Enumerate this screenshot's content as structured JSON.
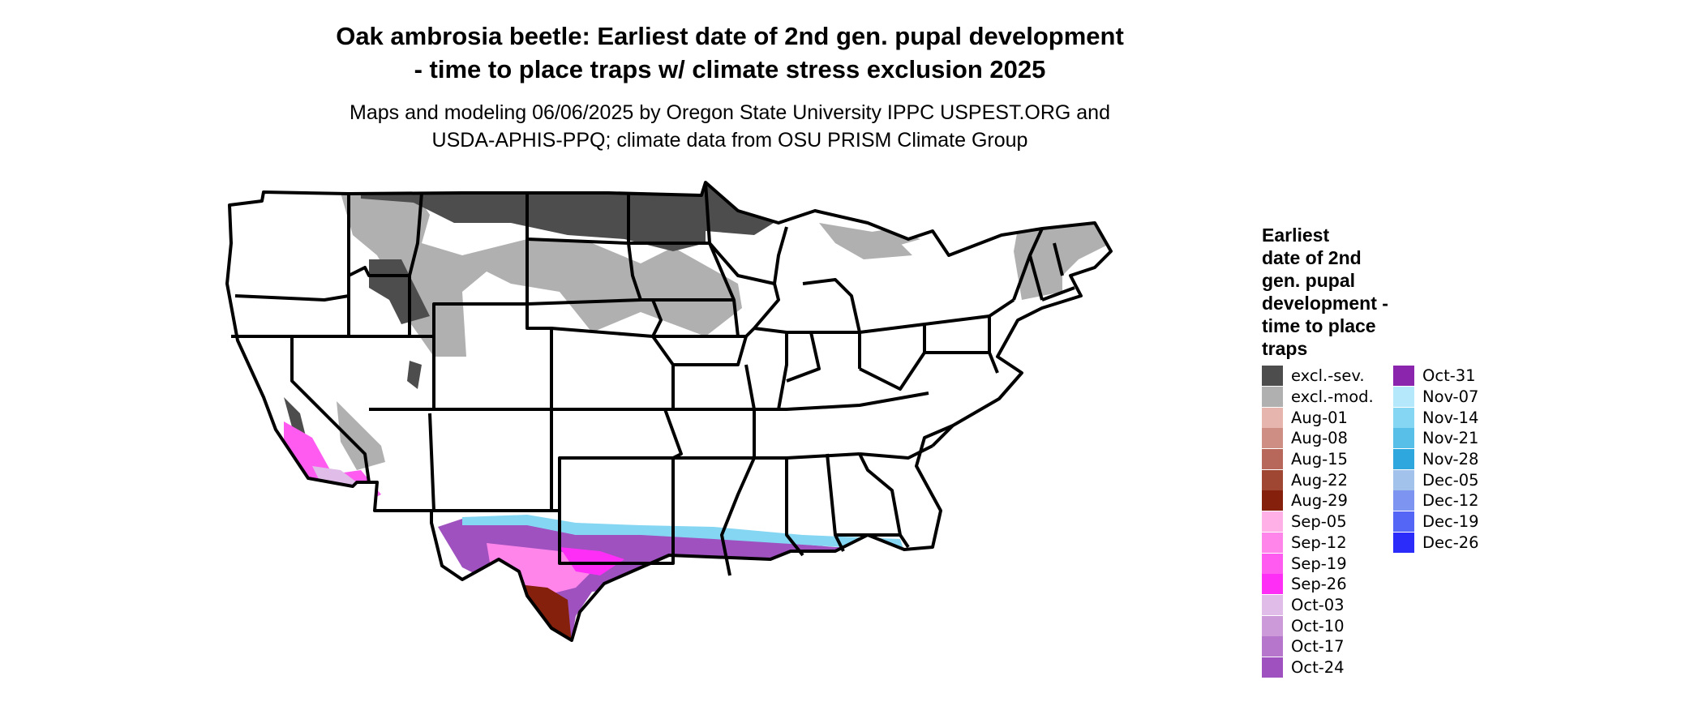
{
  "title": {
    "line1": "Oak ambrosia beetle: Earliest date of 2nd gen. pupal development",
    "line2": "- time to place traps w/ climate stress exclusion 2025"
  },
  "subtitle": {
    "line1": "Maps and modeling 06/06/2025 by Oregon State University IPPC USPEST.ORG and",
    "line2": "USDA-APHIS-PPQ; climate data from OSU PRISM Climate Group"
  },
  "legend": {
    "title_lines": [
      "Earliest",
      "date of 2nd",
      "gen. pupal",
      "development -",
      "time to place",
      "traps"
    ],
    "items": [
      {
        "label": "excl.-sev.",
        "color": "#4d4d4d"
      },
      {
        "label": "excl.-mod.",
        "color": "#b0b0b0"
      },
      {
        "label": "Aug-01",
        "color": "#e6b5ad"
      },
      {
        "label": "Aug-08",
        "color": "#cf8e84"
      },
      {
        "label": "Aug-15",
        "color": "#b8675b"
      },
      {
        "label": "Aug-22",
        "color": "#a04734"
      },
      {
        "label": "Aug-29",
        "color": "#85200d"
      },
      {
        "label": "Sep-05",
        "color": "#ffb0e6"
      },
      {
        "label": "Sep-12",
        "color": "#ff85eb"
      },
      {
        "label": "Sep-19",
        "color": "#ff5bf0"
      },
      {
        "label": "Sep-26",
        "color": "#ff2ef7"
      },
      {
        "label": "Oct-03",
        "color": "#e0bde8"
      },
      {
        "label": "Oct-10",
        "color": "#cc9ad9"
      },
      {
        "label": "Oct-17",
        "color": "#b576cc"
      },
      {
        "label": "Oct-24",
        "color": "#9e51bf"
      },
      {
        "label": "Oct-31",
        "color": "#8c25ad"
      },
      {
        "label": "Nov-07",
        "color": "#b5e8fa"
      },
      {
        "label": "Nov-14",
        "color": "#85d6f2"
      },
      {
        "label": "Nov-21",
        "color": "#57bfe8"
      },
      {
        "label": "Nov-28",
        "color": "#2ea6de"
      },
      {
        "label": "Dec-05",
        "color": "#a3c2eb"
      },
      {
        "label": "Dec-12",
        "color": "#7d94f0"
      },
      {
        "label": "Dec-19",
        "color": "#5466f5"
      },
      {
        "label": "Dec-26",
        "color": "#2b2bfa"
      }
    ]
  }
}
